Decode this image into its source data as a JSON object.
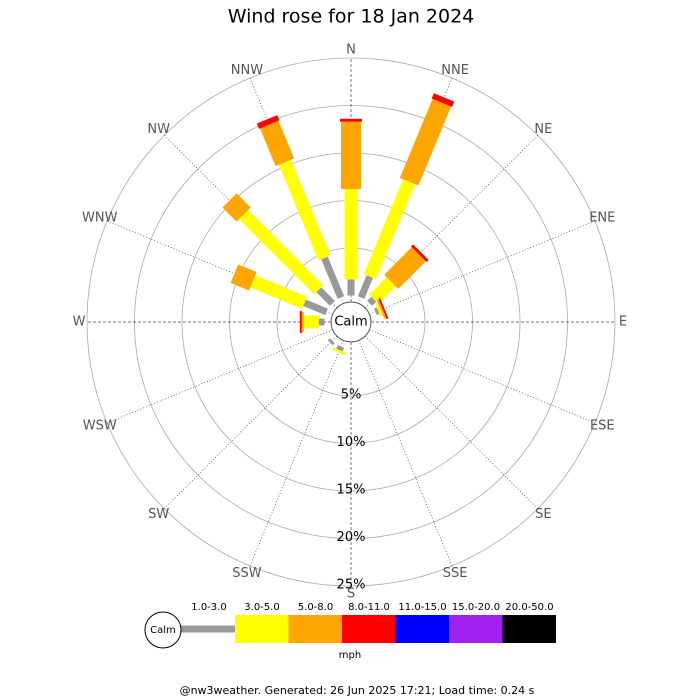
{
  "chart_data": {
    "type": "windrose",
    "title": "Wind rose for 18 Jan 2024",
    "directions": [
      "N",
      "NNE",
      "NE",
      "ENE",
      "E",
      "ESE",
      "SE",
      "SSE",
      "S",
      "SSW",
      "SW",
      "WSW",
      "W",
      "WNW",
      "NW",
      "NNW"
    ],
    "center_label": "Calm",
    "rlim": [
      0,
      25
    ],
    "rticks": [
      {
        "value": 5,
        "label": "5%"
      },
      {
        "value": 10,
        "label": "10%"
      },
      {
        "value": 15,
        "label": "15%"
      },
      {
        "value": 20,
        "label": "20%"
      },
      {
        "value": 25,
        "label": "25%"
      }
    ],
    "series": [
      {
        "name": "1.0-3.0",
        "color": "#999999",
        "values": [
          1.7,
          2.4,
          0.6,
          0.3,
          0,
          0,
          0,
          0,
          0,
          0.4,
          0.3,
          0,
          0.6,
          2.5,
          2.0,
          4.5
        ]
      },
      {
        "name": "3.0-5.0",
        "color": "#ffff00",
        "values": [
          9.5,
          10.8,
          2.6,
          0.3,
          0,
          0,
          0,
          0,
          0,
          0.3,
          0,
          0,
          1.6,
          5.9,
          11.2,
          10.9
        ]
      },
      {
        "name": "5.0-8.0",
        "color": "#ffa500",
        "values": [
          7.1,
          9.0,
          4.1,
          0.2,
          0,
          0,
          0,
          0,
          0,
          0,
          0,
          0,
          0.2,
          2.1,
          2.1,
          4.3
        ]
      },
      {
        "name": "8.0-11.0",
        "color": "#ff0000",
        "values": [
          0.3,
          0.6,
          0.3,
          0.2,
          0,
          0,
          0,
          0,
          0,
          0,
          0,
          0,
          0.2,
          0,
          0,
          0.6
        ]
      },
      {
        "name": "11.0-15.0",
        "color": "#0000ff",
        "values": [
          0,
          0,
          0,
          0,
          0,
          0,
          0,
          0,
          0,
          0,
          0,
          0,
          0,
          0,
          0,
          0
        ]
      },
      {
        "name": "15.0-20.0",
        "color": "#a020f0",
        "values": [
          0,
          0,
          0,
          0,
          0,
          0,
          0,
          0,
          0,
          0,
          0,
          0,
          0,
          0,
          0,
          0
        ]
      },
      {
        "name": "20.0-50.0",
        "color": "#000000",
        "values": [
          0,
          0,
          0,
          0,
          0,
          0,
          0,
          0,
          0,
          0,
          0,
          0,
          0,
          0,
          0,
          0
        ]
      }
    ],
    "legend_calm_label": "Calm",
    "legend_unit": "mph",
    "footer": "@nw3weather. Generated: 26 Jun 2025 17:21; Load time: 0.24 s"
  }
}
